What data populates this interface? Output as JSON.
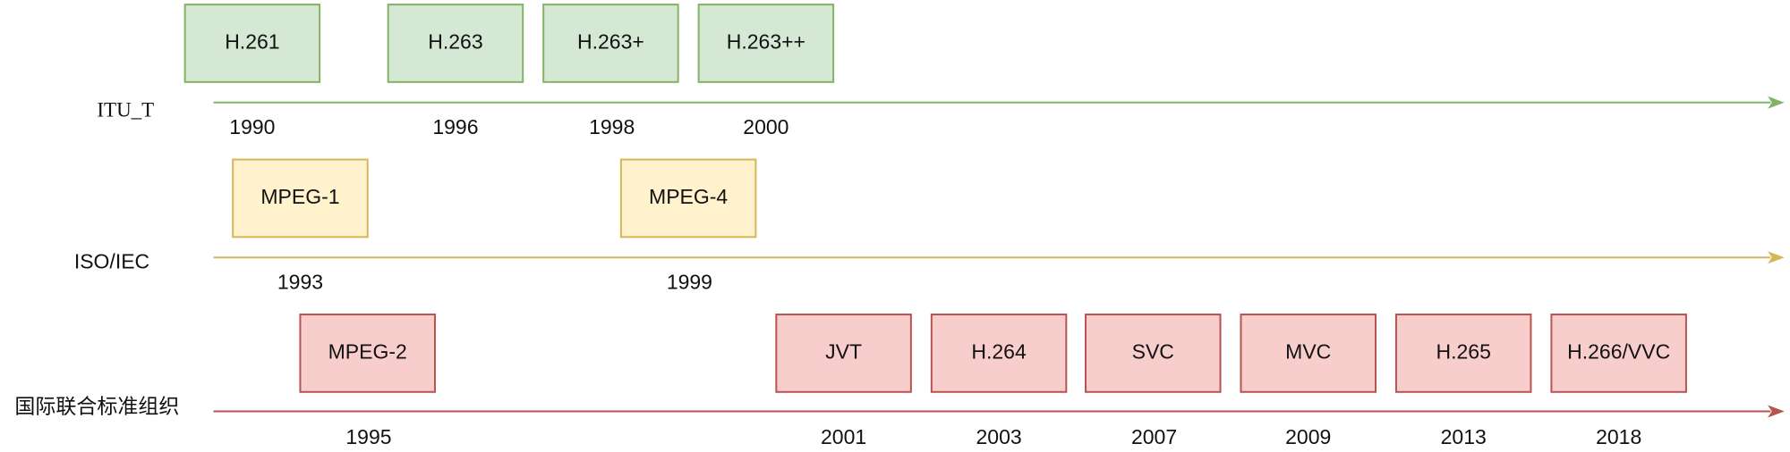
{
  "lanes": [
    {
      "label": "ITU_T",
      "items": [
        {
          "label": "H.261",
          "year": "1990"
        },
        {
          "label": "H.263",
          "year": "1996"
        },
        {
          "label": "H.263+",
          "year": "1998"
        },
        {
          "label": "H.263++",
          "year": "2000"
        }
      ]
    },
    {
      "label": "ISO/IEC",
      "items": [
        {
          "label": "MPEG-1",
          "year": "1993"
        },
        {
          "label": "MPEG-4",
          "year": "1999"
        }
      ]
    },
    {
      "label": "国际联合标准组织",
      "items": [
        {
          "label": "MPEG-2",
          "year": "1995"
        },
        {
          "label": "JVT",
          "year": "2001"
        },
        {
          "label": "H.264",
          "year": "2003"
        },
        {
          "label": "SVC",
          "year": "2007"
        },
        {
          "label": "MVC",
          "year": "2009"
        },
        {
          "label": "H.265",
          "year": "2013"
        },
        {
          "label": "H.266/VVC",
          "year": "2018"
        }
      ]
    }
  ]
}
